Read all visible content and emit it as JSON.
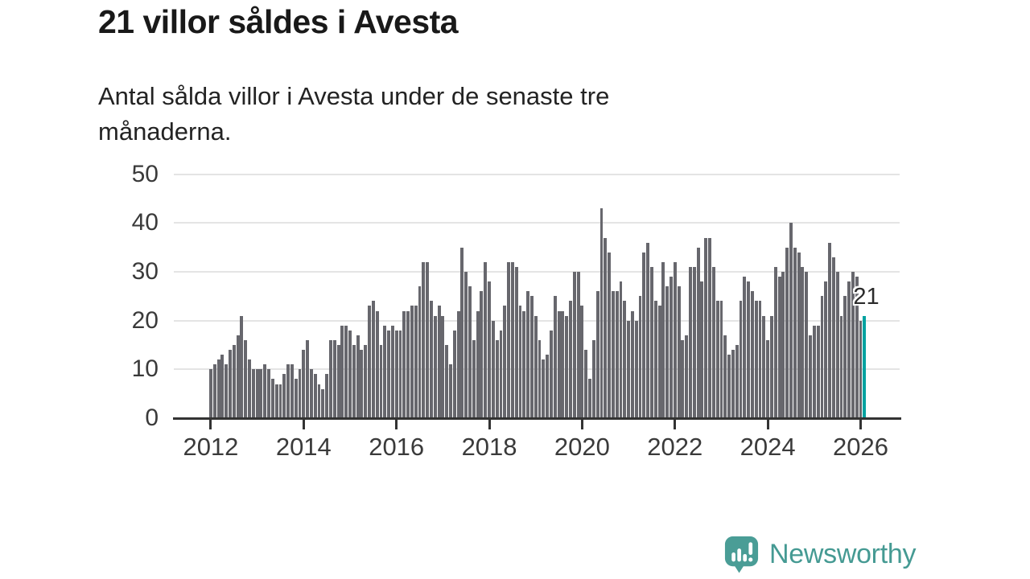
{
  "branding": {
    "name": "Newsworthy",
    "icon": "newsworthy-speech-bubble-bar-chart-icon",
    "color": "#459a93"
  },
  "chart_data": {
    "type": "bar",
    "title": "21 villor såldes i Avesta",
    "subtitle": "Antal sålda villor i Avesta under de senaste tre\nmånaderna.",
    "xlabel": "",
    "ylabel": "",
    "ylim": [
      0,
      50
    ],
    "y_ticks": [
      0,
      10,
      20,
      30,
      40,
      50
    ],
    "grid": "horizontal",
    "x_start": "2012-01",
    "x_end": "2026-02",
    "x_tick_labels": [
      "2012",
      "2014",
      "2016",
      "2018",
      "2020",
      "2022",
      "2024",
      "2026"
    ],
    "bar_color": "#67676d",
    "highlight_color": "#00a2a0",
    "highlight_index": 169,
    "last_value_label": "21",
    "values": [
      10,
      11,
      12,
      13,
      11,
      14,
      15,
      17,
      21,
      16,
      12,
      10,
      10,
      10,
      11,
      10,
      8,
      7,
      7,
      9,
      11,
      11,
      8,
      10,
      14,
      16,
      10,
      9,
      7,
      6,
      9,
      16,
      16,
      15,
      19,
      19,
      18,
      15,
      17,
      14,
      15,
      23,
      24,
      22,
      15,
      19,
      18,
      19,
      18,
      18,
      22,
      22,
      23,
      23,
      27,
      32,
      32,
      24,
      21,
      23,
      21,
      15,
      11,
      18,
      22,
      35,
      30,
      27,
      16,
      22,
      26,
      32,
      28,
      20,
      16,
      18,
      23,
      32,
      32,
      31,
      23,
      22,
      26,
      25,
      21,
      16,
      12,
      13,
      18,
      25,
      22,
      22,
      21,
      24,
      30,
      30,
      23,
      14,
      8,
      16,
      26,
      43,
      37,
      34,
      26,
      26,
      28,
      24,
      20,
      22,
      20,
      25,
      34,
      36,
      31,
      24,
      23,
      32,
      27,
      29,
      32,
      27,
      16,
      17,
      31,
      31,
      35,
      28,
      37,
      37,
      31,
      24,
      24,
      17,
      13,
      14,
      15,
      24,
      29,
      28,
      26,
      24,
      24,
      21,
      16,
      21,
      31,
      29,
      30,
      35,
      40,
      35,
      34,
      31,
      30,
      17,
      19,
      19,
      25,
      28,
      36,
      33,
      30,
      21,
      25,
      28,
      30,
      29,
      20,
      21
    ]
  }
}
